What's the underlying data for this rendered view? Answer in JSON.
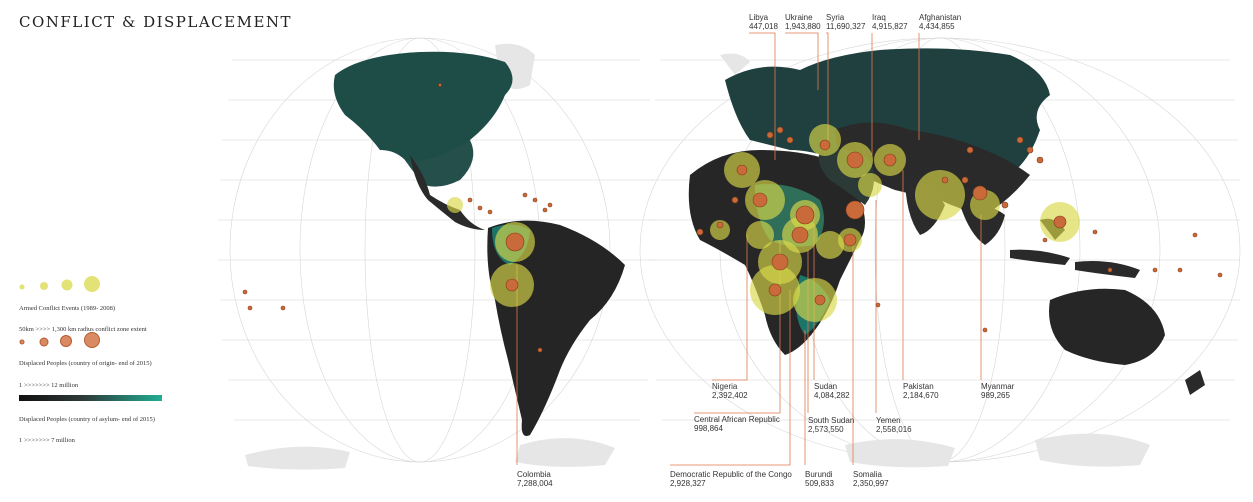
{
  "title": "CONFLICT & DISPLACEMENT",
  "legend": {
    "armed_conflict_label": "Armed Conflict  Events (1989- 2008)",
    "conflict_zone_label": "50km >>>> 1,300 km radius conflict zone extent",
    "displaced_origin_label": "Displaced Peoples (country of origin- end of 2015)",
    "displaced_origin_range": "1 >>>>>>> 12 million",
    "displaced_asylum_label": "Displaced Peoples (country of asylum- end of 2015)",
    "displaced_asylum_range": "1 >>>>>>> 7 million"
  },
  "colors": {
    "conflict_zone_fill": "#d8d84a",
    "event_marker": "#c86a3a",
    "callout_line": "#e07a4e",
    "origin_gradient_start": "#1a1a1a",
    "origin_gradient_end": "#1fae94",
    "land_dark": "#2b2b2b",
    "land_teal": "#1e4d48",
    "graticule": "#d0d0d0"
  },
  "callouts": [
    {
      "country": "Libya",
      "value": "447,018"
    },
    {
      "country": "Ukraine",
      "value": "1,943,880"
    },
    {
      "country": "Syria",
      "value": "11,690,327"
    },
    {
      "country": "Iraq",
      "value": "4,915,827"
    },
    {
      "country": "Afghanistan",
      "value": "4,434,855"
    },
    {
      "country": "Colombia",
      "value": "7,288,004"
    },
    {
      "country": "Nigeria",
      "value": "2,392,402"
    },
    {
      "country": "Central African Republic",
      "value": "998,864"
    },
    {
      "country": "Democratic Republic of the Congo",
      "value": "2,928,327"
    },
    {
      "country": "Sudan",
      "value": "4,084,282"
    },
    {
      "country": "South Sudan",
      "value": "2,573,550"
    },
    {
      "country": "Burundi",
      "value": "509,833"
    },
    {
      "country": "Somalia",
      "value": "2,350,997"
    },
    {
      "country": "Yemen",
      "value": "2,558,016"
    },
    {
      "country": "Pakistan",
      "value": "2,184,670"
    },
    {
      "country": "Myanmar",
      "value": "989,265"
    }
  ]
}
